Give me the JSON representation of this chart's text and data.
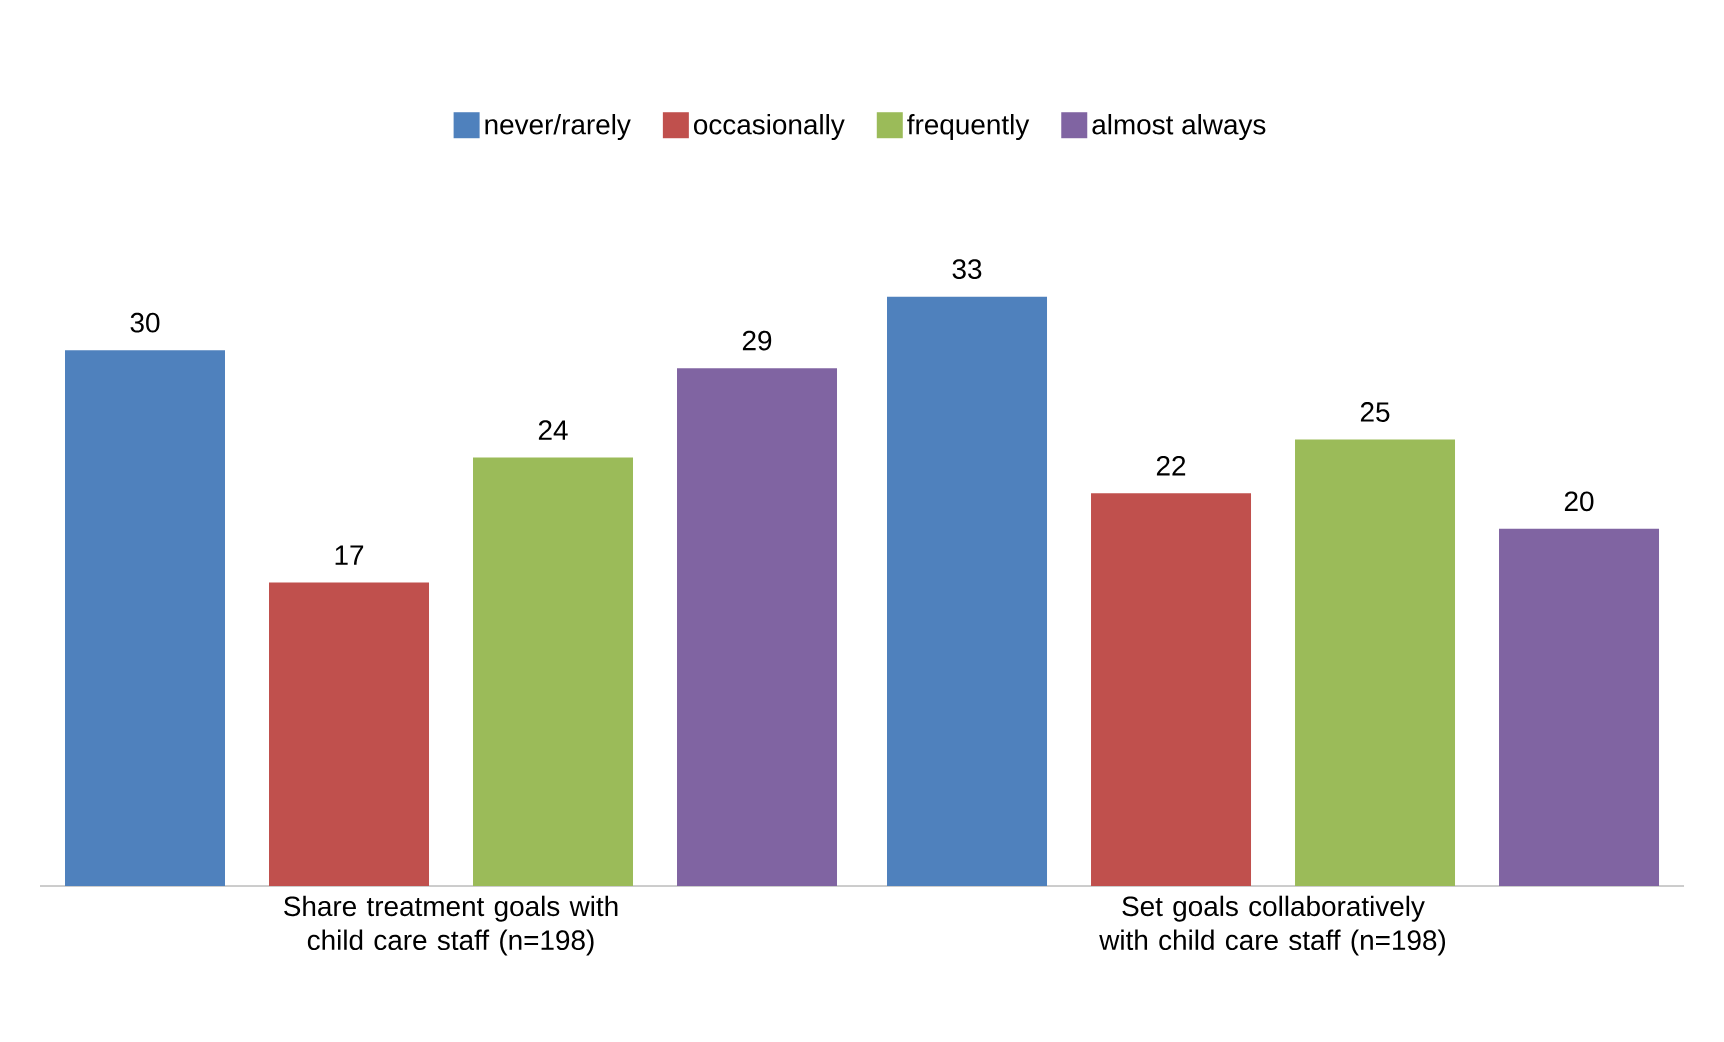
{
  "chart_data": {
    "type": "bar",
    "categories": [
      "Share treatment goals with child care staff (n=198)",
      "Set goals collaboratively with child care staff (n=198)"
    ],
    "series": [
      {
        "name": "never/rarely",
        "color": "#4f81bd",
        "values": [
          30,
          33
        ]
      },
      {
        "name": "occasionally",
        "color": "#c0504d",
        "values": [
          17,
          22
        ]
      },
      {
        "name": "frequently",
        "color": "#9bbb59",
        "values": [
          24,
          25
        ]
      },
      {
        "name": "almost always",
        "color": "#8064a2",
        "values": [
          29,
          20
        ]
      }
    ],
    "data_labels": true,
    "legend": "top"
  }
}
